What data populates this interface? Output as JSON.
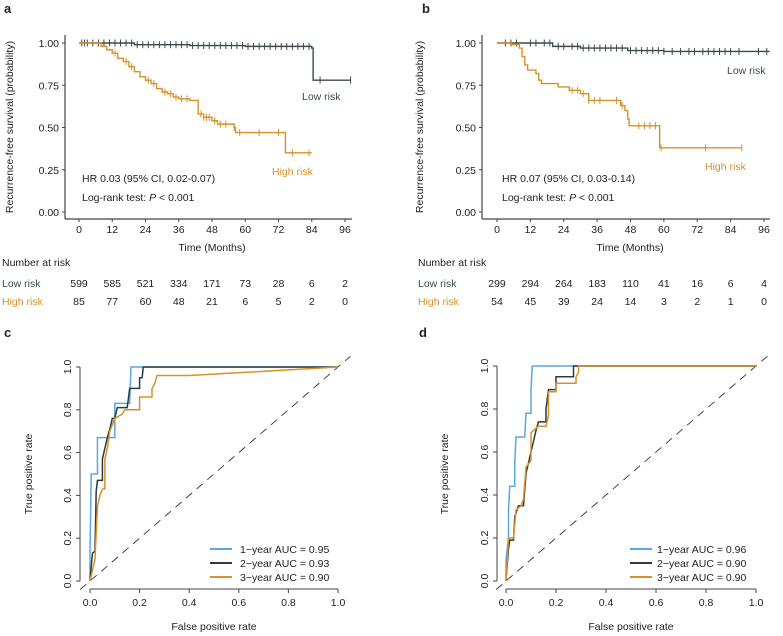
{
  "panel_labels": [
    "a",
    "b",
    "c",
    "d"
  ],
  "colors": {
    "low_risk": "#3b4b4b",
    "high_risk": "#d8902a",
    "year1": "#5aa7e3",
    "year2": "#2f3a3a",
    "year3": "#d8902a",
    "axis": "#444444"
  },
  "chart_data": [
    {
      "type": "line",
      "subtype": "kaplan-meier",
      "xlabel": "Time (Months)",
      "ylabel": "Recurrence-free survival (probability)",
      "xlim": [
        0,
        96
      ],
      "ylim": [
        0,
        1
      ],
      "xticks": [
        "0",
        "12",
        "24",
        "36",
        "48",
        "60",
        "72",
        "84",
        "96"
      ],
      "yticks": [
        "0.00",
        "0.25",
        "0.50",
        "0.75",
        "1.00"
      ],
      "annotations": {
        "hr": "HR 0.03 (95% CI, 0.02-0.07)",
        "logrank_prefix": "Log-rank test: ",
        "logrank_p": "P",
        "logrank_suffix": " < 0.001"
      },
      "series": [
        {
          "name": "Low risk",
          "color": "#3b4b4b",
          "points": [
            [
              0,
              1
            ],
            [
              8,
              1
            ],
            [
              20,
              0.99
            ],
            [
              40,
              0.985
            ],
            [
              60,
              0.98
            ],
            [
              84,
              0.97
            ],
            [
              84.5,
              0.78
            ],
            [
              98,
              0.78
            ]
          ],
          "censor": [
            1,
            2,
            3,
            5,
            7,
            9,
            11,
            13,
            15,
            17,
            19,
            21,
            23,
            25,
            27,
            29,
            31,
            33,
            35,
            37,
            39,
            41,
            43,
            45,
            47,
            49,
            51,
            53,
            55,
            57,
            59,
            61,
            63,
            65,
            67,
            69,
            71,
            73,
            75,
            77,
            79,
            81,
            83,
            87,
            98
          ]
        },
        {
          "name": "High risk",
          "color": "#d8902a",
          "points": [
            [
              0,
              1
            ],
            [
              5,
              1
            ],
            [
              8,
              0.98
            ],
            [
              10,
              0.96
            ],
            [
              12,
              0.94
            ],
            [
              14,
              0.91
            ],
            [
              16,
              0.89
            ],
            [
              18,
              0.86
            ],
            [
              20,
              0.83
            ],
            [
              22,
              0.8
            ],
            [
              24,
              0.78
            ],
            [
              26,
              0.76
            ],
            [
              28,
              0.73
            ],
            [
              30,
              0.71
            ],
            [
              32,
              0.7
            ],
            [
              34,
              0.68
            ],
            [
              36,
              0.67
            ],
            [
              40,
              0.66
            ],
            [
              43,
              0.66
            ],
            [
              43,
              0.58
            ],
            [
              45,
              0.56
            ],
            [
              48,
              0.54
            ],
            [
              50,
              0.52
            ],
            [
              52,
              0.52
            ],
            [
              56,
              0.5
            ],
            [
              56.5,
              0.47
            ],
            [
              74,
              0.47
            ],
            [
              74.5,
              0.35
            ],
            [
              84,
              0.35
            ]
          ],
          "censor": [
            13,
            17,
            19,
            25,
            27,
            31,
            33,
            35,
            37,
            39,
            44,
            45,
            46,
            47,
            49,
            51,
            53,
            56,
            58,
            65,
            72,
            77,
            83
          ]
        }
      ],
      "risk_table": {
        "title": "Number at risk",
        "rows": [
          {
            "label": "Low risk",
            "values": [
              "599",
              "585",
              "521",
              "334",
              "171",
              "73",
              "28",
              "6",
              "2"
            ]
          },
          {
            "label": "High risk",
            "values": [
              "85",
              "77",
              "60",
              "48",
              "21",
              "6",
              "5",
              "2",
              "0"
            ]
          }
        ]
      }
    },
    {
      "type": "line",
      "subtype": "kaplan-meier",
      "xlabel": "Time (Months)",
      "ylabel": "Recurrence-free survival (probability)",
      "xlim": [
        0,
        96
      ],
      "ylim": [
        0,
        1
      ],
      "xticks": [
        "0",
        "12",
        "24",
        "36",
        "48",
        "60",
        "72",
        "84",
        "96"
      ],
      "yticks": [
        "0.00",
        "0.25",
        "0.50",
        "0.75",
        "1.00"
      ],
      "annotations": {
        "hr": "HR 0.07 (95% CI, 0.03-0.14)",
        "logrank_prefix": "Log-rank test: ",
        "logrank_p": "P",
        "logrank_suffix": " < 0.001"
      },
      "series": [
        {
          "name": "Low risk",
          "color": "#3b4b4b",
          "points": [
            [
              0,
              1
            ],
            [
              12,
              1
            ],
            [
              20,
              0.98
            ],
            [
              30,
              0.97
            ],
            [
              40,
              0.97
            ],
            [
              47,
              0.955
            ],
            [
              60,
              0.95
            ],
            [
              98,
              0.95
            ]
          ],
          "censor": [
            3,
            5,
            7,
            12,
            14,
            17,
            19,
            22,
            24,
            27,
            29,
            31,
            33,
            35,
            37,
            39,
            41,
            43,
            45,
            48,
            50,
            52,
            54,
            56,
            58,
            60,
            63,
            66,
            69,
            71,
            74,
            76,
            78,
            80,
            82,
            84,
            87,
            94,
            97
          ]
        },
        {
          "name": "High risk",
          "color": "#d8902a",
          "points": [
            [
              0,
              1
            ],
            [
              5,
              0.99
            ],
            [
              8,
              0.97
            ],
            [
              9,
              0.92
            ],
            [
              10,
              0.87
            ],
            [
              11,
              0.84
            ],
            [
              14,
              0.82
            ],
            [
              15,
              0.78
            ],
            [
              16,
              0.76
            ],
            [
              22,
              0.74
            ],
            [
              26,
              0.72
            ],
            [
              30,
              0.7
            ],
            [
              33,
              0.66
            ],
            [
              44,
              0.66
            ],
            [
              44.5,
              0.63
            ],
            [
              46,
              0.6
            ],
            [
              47,
              0.55
            ],
            [
              47.5,
              0.51
            ],
            [
              58,
              0.51
            ],
            [
              58.5,
              0.38
            ],
            [
              88,
              0.38
            ]
          ],
          "censor": [
            27,
            29,
            31,
            33,
            35,
            37,
            43,
            45,
            51,
            53,
            55,
            57,
            59,
            75,
            88
          ]
        }
      ],
      "risk_table": {
        "title": "Number at risk",
        "rows": [
          {
            "label": "Low risk",
            "values": [
              "299",
              "294",
              "264",
              "183",
              "110",
              "41",
              "16",
              "6",
              "4"
            ]
          },
          {
            "label": "High risk",
            "values": [
              "54",
              "45",
              "39",
              "24",
              "14",
              "3",
              "2",
              "1",
              "0"
            ]
          }
        ]
      }
    },
    {
      "type": "line",
      "subtype": "roc",
      "xlabel": "False positive rate",
      "ylabel": "True positive rate",
      "xlim": [
        0,
        1
      ],
      "ylim": [
        0,
        1
      ],
      "xticks": [
        "0.0",
        "0.2",
        "0.4",
        "0.6",
        "0.8",
        "1.0"
      ],
      "yticks": [
        "0.0",
        "0.2",
        "0.4",
        "0.6",
        "0.8",
        "1.0"
      ],
      "legend_position": "bottom-right",
      "series": [
        {
          "name": "1−year AUC = 0.95",
          "color": "#5aa7e3",
          "points": [
            [
              0,
              0
            ],
            [
              0,
              0.13
            ],
            [
              0.005,
              0.5
            ],
            [
              0.03,
              0.5
            ],
            [
              0.03,
              0.67
            ],
            [
              0.1,
              0.67
            ],
            [
              0.1,
              0.83
            ],
            [
              0.16,
              0.83
            ],
            [
              0.165,
              1
            ],
            [
              1,
              1
            ]
          ]
        },
        {
          "name": "2−year AUC = 0.93",
          "color": "#2f3a3a",
          "points": [
            [
              0,
              0
            ],
            [
              0.01,
              0.13
            ],
            [
              0.02,
              0.14
            ],
            [
              0.025,
              0.42
            ],
            [
              0.03,
              0.47
            ],
            [
              0.05,
              0.47
            ],
            [
              0.05,
              0.57
            ],
            [
              0.06,
              0.62
            ],
            [
              0.07,
              0.67
            ],
            [
              0.08,
              0.71
            ],
            [
              0.09,
              0.76
            ],
            [
              0.1,
              0.76
            ],
            [
              0.11,
              0.81
            ],
            [
              0.15,
              0.81
            ],
            [
              0.16,
              0.9
            ],
            [
              0.2,
              0.9
            ],
            [
              0.2,
              0.95
            ],
            [
              0.21,
              0.95
            ],
            [
              0.215,
              1
            ],
            [
              1,
              1
            ]
          ]
        },
        {
          "name": "3−year AUC = 0.90",
          "color": "#d8902a",
          "points": [
            [
              0,
              0
            ],
            [
              0.02,
              0.1
            ],
            [
              0.03,
              0.35
            ],
            [
              0.04,
              0.4
            ],
            [
              0.05,
              0.43
            ],
            [
              0.06,
              0.43
            ],
            [
              0.06,
              0.57
            ],
            [
              0.07,
              0.62
            ],
            [
              0.08,
              0.7
            ],
            [
              0.1,
              0.76
            ],
            [
              0.13,
              0.78
            ],
            [
              0.14,
              0.8
            ],
            [
              0.2,
              0.8
            ],
            [
              0.2,
              0.86
            ],
            [
              0.25,
              0.86
            ],
            [
              0.25,
              0.9
            ],
            [
              0.26,
              0.92
            ],
            [
              0.27,
              0.96
            ],
            [
              0.4,
              0.96
            ],
            [
              1,
              1
            ]
          ]
        }
      ]
    },
    {
      "type": "line",
      "subtype": "roc",
      "xlabel": "False positive rate",
      "ylabel": "True positive rate",
      "xlim": [
        0,
        1
      ],
      "ylim": [
        0,
        1
      ],
      "xticks": [
        "0.0",
        "0.2",
        "0.4",
        "0.6",
        "0.8",
        "1.0"
      ],
      "yticks": [
        "0.0",
        "0.2",
        "0.4",
        "0.6",
        "0.8",
        "1.0"
      ],
      "legend_position": "bottom-right",
      "series": [
        {
          "name": "1−year AUC = 0.96",
          "color": "#5aa7e3",
          "points": [
            [
              0,
              0
            ],
            [
              0,
              0.1
            ],
            [
              0.01,
              0.2
            ],
            [
              0.01,
              0.33
            ],
            [
              0.015,
              0.44
            ],
            [
              0.035,
              0.44
            ],
            [
              0.035,
              0.55
            ],
            [
              0.04,
              0.67
            ],
            [
              0.075,
              0.67
            ],
            [
              0.08,
              0.78
            ],
            [
              0.1,
              0.78
            ],
            [
              0.1,
              0.89
            ],
            [
              0.105,
              1
            ],
            [
              1,
              1
            ]
          ]
        },
        {
          "name": "2−year AUC = 0.90",
          "color": "#2f3a3a",
          "points": [
            [
              0,
              0
            ],
            [
              0.01,
              0.15
            ],
            [
              0.015,
              0.19
            ],
            [
              0.03,
              0.19
            ],
            [
              0.035,
              0.3
            ],
            [
              0.05,
              0.35
            ],
            [
              0.07,
              0.35
            ],
            [
              0.08,
              0.5
            ],
            [
              0.09,
              0.55
            ],
            [
              0.1,
              0.6
            ],
            [
              0.11,
              0.65
            ],
            [
              0.12,
              0.7
            ],
            [
              0.13,
              0.74
            ],
            [
              0.16,
              0.74
            ],
            [
              0.16,
              0.8
            ],
            [
              0.17,
              0.89
            ],
            [
              0.2,
              0.89
            ],
            [
              0.2,
              0.95
            ],
            [
              0.27,
              0.95
            ],
            [
              0.27,
              1
            ],
            [
              1,
              1
            ]
          ]
        },
        {
          "name": "3−year AUC = 0.90",
          "color": "#d8902a",
          "points": [
            [
              0,
              0
            ],
            [
              0.01,
              0.2
            ],
            [
              0.03,
              0.2
            ],
            [
              0.04,
              0.33
            ],
            [
              0.06,
              0.35
            ],
            [
              0.07,
              0.38
            ],
            [
              0.08,
              0.53
            ],
            [
              0.1,
              0.56
            ],
            [
              0.1,
              0.69
            ],
            [
              0.13,
              0.72
            ],
            [
              0.16,
              0.72
            ],
            [
              0.17,
              0.77
            ],
            [
              0.17,
              0.88
            ],
            [
              0.2,
              0.88
            ],
            [
              0.2,
              0.92
            ],
            [
              0.28,
              0.92
            ],
            [
              0.28,
              0.95
            ],
            [
              0.29,
              0.97
            ],
            [
              0.29,
              1
            ],
            [
              1,
              1
            ]
          ]
        }
      ]
    }
  ]
}
